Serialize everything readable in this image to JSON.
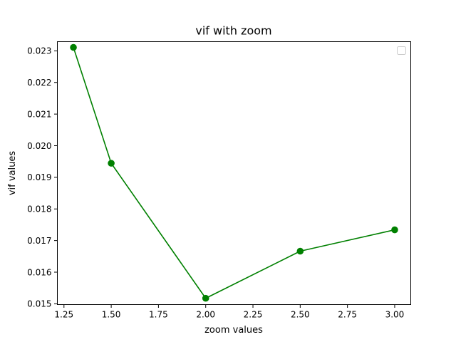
{
  "chart_data": {
    "type": "line",
    "title": "vif with zoom",
    "xlabel": "zoom values",
    "ylabel": "vif values",
    "xlim": [
      1.215,
      3.085
    ],
    "ylim": [
      0.014975,
      0.02329
    ],
    "x_ticks": [
      1.25,
      1.5,
      1.75,
      2.0,
      2.25,
      2.5,
      2.75,
      3.0
    ],
    "x_tick_labels": [
      "1.25",
      "1.50",
      "1.75",
      "2.00",
      "2.25",
      "2.50",
      "2.75",
      "3.00"
    ],
    "y_ticks": [
      0.015,
      0.016,
      0.017,
      0.018,
      0.019,
      0.02,
      0.021,
      0.022,
      0.023
    ],
    "y_tick_labels": [
      "0.015",
      "0.016",
      "0.017",
      "0.018",
      "0.019",
      "0.020",
      "0.021",
      "0.022",
      "0.023"
    ],
    "grid": false,
    "legend": {
      "placement": "top-right",
      "entries": []
    },
    "series": [
      {
        "color": "#008000",
        "marker": "circle",
        "x": [
          1.3,
          1.5,
          2.0,
          2.5,
          3.0
        ],
        "y": [
          0.02311,
          0.019445,
          0.015175,
          0.016665,
          0.01734
        ]
      }
    ]
  }
}
